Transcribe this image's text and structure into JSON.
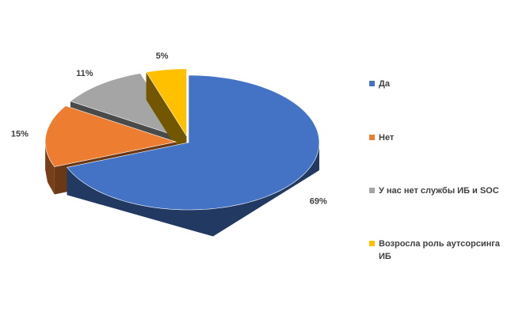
{
  "chart_data": {
    "type": "pie3d",
    "categories": [
      "Да",
      "Нет",
      "У нас нет службы ИБ и SOC",
      "Возросла роль аутсорсинга ИБ"
    ],
    "values": [
      69,
      15,
      11,
      5
    ],
    "value_labels": [
      "69%",
      "15%",
      "11%",
      "5%"
    ],
    "colors": [
      "#4472c4",
      "#ed7d31",
      "#a5a5a5",
      "#ffc000"
    ],
    "legend": "right"
  }
}
